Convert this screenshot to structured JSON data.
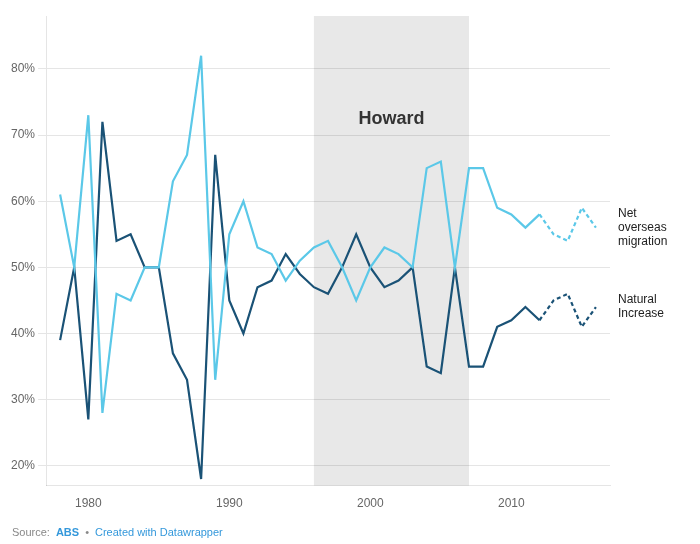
{
  "chart_data": {
    "type": "line",
    "x": [
      1978,
      1979,
      1980,
      1981,
      1982,
      1983,
      1984,
      1985,
      1986,
      1987,
      1988,
      1989,
      1990,
      1991,
      1992,
      1993,
      1994,
      1995,
      1996,
      1997,
      1998,
      1999,
      2000,
      2001,
      2002,
      2003,
      2004,
      2005,
      2006,
      2007,
      2008,
      2009,
      2010,
      2011,
      2012,
      2013,
      2014,
      2015,
      2016
    ],
    "series": [
      {
        "name": "Net\noverseas\nmigration",
        "color": "#5bc8e8",
        "values": [
          0.61,
          0.5,
          0.73,
          0.28,
          0.46,
          0.45,
          0.5,
          0.5,
          0.63,
          0.67,
          0.82,
          0.33,
          0.55,
          0.6,
          0.53,
          0.52,
          0.48,
          0.51,
          0.53,
          0.54,
          0.5,
          0.45,
          0.5,
          0.53,
          0.52,
          0.5,
          0.65,
          0.66,
          0.5,
          0.65,
          0.65,
          0.59,
          0.58,
          0.56,
          0.58,
          0.55,
          0.54,
          0.59,
          0.56
        ]
      },
      {
        "name": "Natural\nIncrease",
        "color": "#1a5276",
        "values": [
          0.39,
          0.5,
          0.27,
          0.72,
          0.54,
          0.55,
          0.5,
          0.5,
          0.37,
          0.33,
          0.18,
          0.67,
          0.45,
          0.4,
          0.47,
          0.48,
          0.52,
          0.49,
          0.47,
          0.46,
          0.5,
          0.55,
          0.5,
          0.47,
          0.48,
          0.5,
          0.35,
          0.34,
          0.5,
          0.35,
          0.35,
          0.41,
          0.42,
          0.44,
          0.42,
          0.45,
          0.46,
          0.41,
          0.44
        ]
      }
    ],
    "dashed_from": 2012,
    "annotations": [
      {
        "text": "Howard",
        "x_from": 1996,
        "x_to": 2007
      }
    ],
    "source": [
      "Source:",
      "ABS",
      "•",
      "Created with Datawrapper"
    ],
    "xlim": [
      1977,
      2017
    ],
    "xticks": [
      1980,
      1990,
      2000,
      2010
    ],
    "ylim": [
      0.17,
      0.88
    ],
    "yticks": [
      {
        "value": 0.2,
        "label": "20%"
      },
      {
        "value": 0.3,
        "label": "30%"
      },
      {
        "value": 0.4,
        "label": "40%"
      },
      {
        "value": 0.5,
        "label": "50%"
      },
      {
        "value": 0.6,
        "label": "60%"
      },
      {
        "value": 0.7,
        "label": "70%"
      },
      {
        "value": 0.8,
        "label": "80%"
      }
    ],
    "grid": "y"
  }
}
